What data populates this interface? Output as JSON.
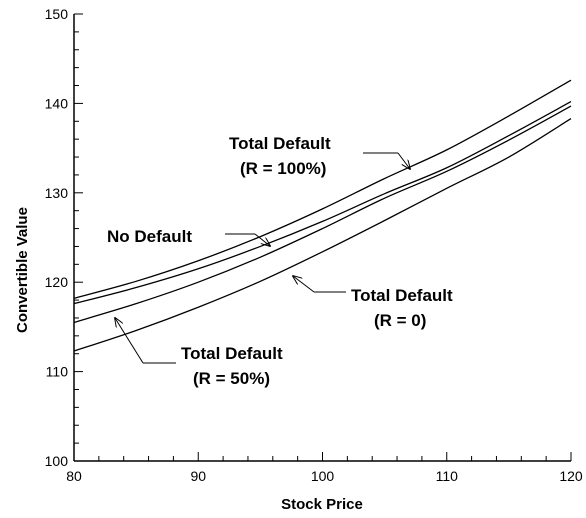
{
  "chart_data": {
    "type": "line",
    "title": "",
    "xlabel": "Stock Price",
    "ylabel": "Convertible Value",
    "xlim": [
      80,
      120
    ],
    "ylim": [
      100,
      150
    ],
    "x_ticks": [
      80,
      90,
      100,
      110,
      120
    ],
    "y_ticks": [
      100,
      110,
      120,
      130,
      140,
      150
    ],
    "x_tick_labels": [
      "80",
      "90",
      "100",
      "110",
      "120"
    ],
    "y_tick_labels": [
      "100",
      "110",
      "120",
      "130",
      "140",
      "150"
    ],
    "grid": false,
    "legend": "none",
    "series": [
      {
        "x": [
          80,
          85,
          90,
          95,
          100,
          105,
          110,
          115,
          120
        ],
        "y": [
          118.2,
          120.1,
          122.4,
          125.1,
          128.2,
          131.6,
          134.8,
          138.6,
          142.6
        ]
      },
      {
        "x": [
          80,
          85,
          90,
          95,
          100,
          105,
          110,
          115,
          120
        ],
        "y": [
          117.6,
          119.4,
          121.5,
          124.0,
          126.8,
          129.9,
          132.8,
          136.4,
          140.2
        ]
      },
      {
        "x": [
          80,
          85,
          90,
          95,
          100,
          105,
          110,
          115,
          120
        ],
        "y": [
          115.5,
          117.6,
          120.0,
          122.8,
          126.0,
          129.4,
          132.4,
          135.9,
          139.7
        ]
      },
      {
        "x": [
          80,
          85,
          90,
          95,
          100,
          105,
          110,
          115,
          120
        ],
        "y": [
          112.3,
          114.6,
          117.2,
          120.1,
          123.4,
          126.9,
          130.5,
          134.0,
          138.3
        ]
      }
    ],
    "annotations": [
      {
        "lines": [
          "Total Default",
          "(R = 100%)"
        ],
        "points_to": {
          "x": 107.2,
          "y": 135.1
        }
      },
      {
        "lines": [
          "No Default"
        ],
        "points_to": {
          "x": 97.2,
          "y": 124.0
        }
      },
      {
        "lines": [
          "Total Default",
          "(R = 0)"
        ],
        "points_to": {
          "x": 98.3,
          "y": 125.1
        }
      },
      {
        "lines": [
          "Total Default",
          "(R =  50%)"
        ],
        "points_to": {
          "x": 84.0,
          "y": 116.6
        }
      }
    ]
  }
}
